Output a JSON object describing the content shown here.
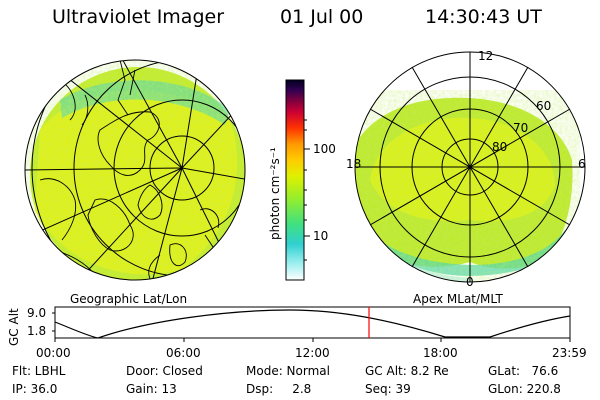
{
  "header": {
    "instrument": "Ultraviolet Imager",
    "date": "01 Jul 00",
    "time": "14:30:43 UT"
  },
  "geo_panel": {
    "caption": "Geographic Lat/Lon"
  },
  "polar_panel": {
    "caption": "Apex MLat/MLT",
    "mlt_labels": [
      "12",
      "18",
      "6",
      "0"
    ],
    "mlat_labels": [
      "60",
      "70",
      "80"
    ]
  },
  "colorbar": {
    "unit_label": "photon cm⁻²s⁻¹",
    "tick_labels": [
      "100",
      "10"
    ],
    "scale": "log",
    "colors": [
      "#ffffff",
      "#a0f0f0",
      "#30d0d0",
      "#40e080",
      "#90ee30",
      "#e0f000",
      "#ffcc00",
      "#ff9900",
      "#ff3300",
      "#cc0033",
      "#7a0040",
      "#300050",
      "#000020"
    ]
  },
  "altitude_plot": {
    "ylabel": "GC Alt",
    "ytick_labels": [
      "9.0",
      "1.8"
    ],
    "xtick_labels": [
      "00:00",
      "06:00",
      "12:00",
      "18:00",
      "23:59"
    ],
    "current_time_marker_color": "#ff0000"
  },
  "status": {
    "flt": "Flt: LBHL",
    "ip": "IP: 36.0",
    "door": "Door: Closed",
    "gain": "Gain: 13",
    "mode": "Mode: Normal",
    "dsp": "Dsp:     2.8",
    "gc_alt": "GC Alt: 8.2 Re",
    "seq": "Seq: 39",
    "glat": "GLat:   76.6",
    "glon": "GLon: 220.8"
  }
}
